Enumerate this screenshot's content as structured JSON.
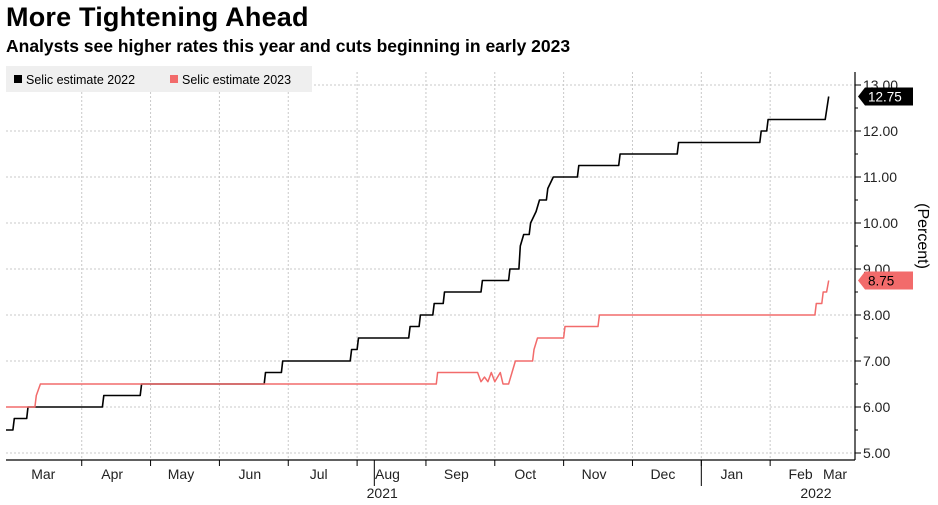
{
  "header": {
    "title": "More Tightening Ahead",
    "subtitle": "Analysts see higher rates this year and cuts beginning in early 2023"
  },
  "chart_data": {
    "type": "line",
    "title": "More Tightening Ahead",
    "subtitle": "Analysts see higher rates this year and cuts beginning in early 2023",
    "ylabel": "(Percent)",
    "xlabel": "",
    "ylim": [
      5.0,
      13.0
    ],
    "yticks": [
      "5.00",
      "6.00",
      "7.00",
      "8.00",
      "9.00",
      "10.00",
      "11.00",
      "12.00",
      "13.00"
    ],
    "xlim": [
      0,
      12.1
    ],
    "xticks": [
      {
        "label": "Mar",
        "at": 0.6
      },
      {
        "label": "Apr",
        "at": 1.6
      },
      {
        "label": "May",
        "at": 2.6
      },
      {
        "label": "Jun",
        "at": 3.6
      },
      {
        "label": "Jul",
        "at": 4.6
      },
      {
        "label": "Aug",
        "at": 5.6
      },
      {
        "label": "Sep",
        "at": 6.6
      },
      {
        "label": "Oct",
        "at": 7.6
      },
      {
        "label": "Nov",
        "at": 8.6
      },
      {
        "label": "Dec",
        "at": 9.6
      },
      {
        "label": "Jan",
        "at": 10.6
      },
      {
        "label": "Feb",
        "at": 11.6
      },
      {
        "label": "Mar",
        "at": 12.1
      }
    ],
    "years": [
      {
        "label": "2021",
        "at": 5.0
      },
      {
        "label": "2022",
        "at": 11.3
      }
    ],
    "grid": true,
    "legend_position": "top-left",
    "series": [
      {
        "name": "Selic estimate 2022",
        "color": "#000000",
        "last_label": "12.75",
        "points": [
          [
            0.0,
            5.5
          ],
          [
            0.1,
            5.5
          ],
          [
            0.12,
            5.75
          ],
          [
            0.3,
            5.75
          ],
          [
            0.32,
            6.0
          ],
          [
            1.4,
            6.0
          ],
          [
            1.42,
            6.25
          ],
          [
            1.95,
            6.25
          ],
          [
            1.97,
            6.5
          ],
          [
            3.75,
            6.5
          ],
          [
            3.77,
            6.75
          ],
          [
            4.0,
            6.75
          ],
          [
            4.02,
            7.0
          ],
          [
            5.0,
            7.0
          ],
          [
            5.02,
            7.25
          ],
          [
            5.1,
            7.25
          ],
          [
            5.12,
            7.5
          ],
          [
            5.85,
            7.5
          ],
          [
            5.87,
            7.75
          ],
          [
            6.0,
            7.75
          ],
          [
            6.02,
            8.0
          ],
          [
            6.2,
            8.0
          ],
          [
            6.22,
            8.25
          ],
          [
            6.35,
            8.25
          ],
          [
            6.37,
            8.5
          ],
          [
            6.9,
            8.5
          ],
          [
            6.92,
            8.75
          ],
          [
            7.3,
            8.75
          ],
          [
            7.32,
            9.0
          ],
          [
            7.45,
            9.0
          ],
          [
            7.47,
            9.5
          ],
          [
            7.52,
            9.75
          ],
          [
            7.6,
            9.75
          ],
          [
            7.62,
            10.0
          ],
          [
            7.7,
            10.25
          ],
          [
            7.75,
            10.5
          ],
          [
            7.85,
            10.5
          ],
          [
            7.87,
            10.75
          ],
          [
            7.95,
            11.0
          ],
          [
            8.3,
            11.0
          ],
          [
            8.32,
            11.25
          ],
          [
            8.9,
            11.25
          ],
          [
            8.92,
            11.5
          ],
          [
            9.75,
            11.5
          ],
          [
            9.77,
            11.75
          ],
          [
            10.95,
            11.75
          ],
          [
            10.97,
            12.0
          ],
          [
            11.05,
            12.0
          ],
          [
            11.07,
            12.25
          ],
          [
            11.9,
            12.25
          ],
          [
            11.95,
            12.75
          ]
        ]
      },
      {
        "name": "Selic estimate 2023",
        "color": "#f26b6b",
        "last_label": "8.75",
        "points": [
          [
            0.0,
            6.0
          ],
          [
            0.42,
            6.0
          ],
          [
            0.44,
            6.25
          ],
          [
            0.5,
            6.5
          ],
          [
            6.25,
            6.5
          ],
          [
            6.27,
            6.75
          ],
          [
            6.85,
            6.75
          ],
          [
            6.9,
            6.55
          ],
          [
            6.95,
            6.65
          ],
          [
            7.0,
            6.55
          ],
          [
            7.05,
            6.75
          ],
          [
            7.1,
            6.55
          ],
          [
            7.18,
            6.75
          ],
          [
            7.22,
            6.5
          ],
          [
            7.3,
            6.5
          ],
          [
            7.35,
            6.75
          ],
          [
            7.4,
            7.0
          ],
          [
            7.65,
            7.0
          ],
          [
            7.67,
            7.25
          ],
          [
            7.72,
            7.5
          ],
          [
            8.1,
            7.5
          ],
          [
            8.12,
            7.75
          ],
          [
            8.6,
            7.75
          ],
          [
            8.62,
            8.0
          ],
          [
            11.75,
            8.0
          ],
          [
            11.77,
            8.25
          ],
          [
            11.85,
            8.25
          ],
          [
            11.87,
            8.5
          ],
          [
            11.92,
            8.5
          ],
          [
            11.95,
            8.75
          ]
        ]
      }
    ]
  }
}
